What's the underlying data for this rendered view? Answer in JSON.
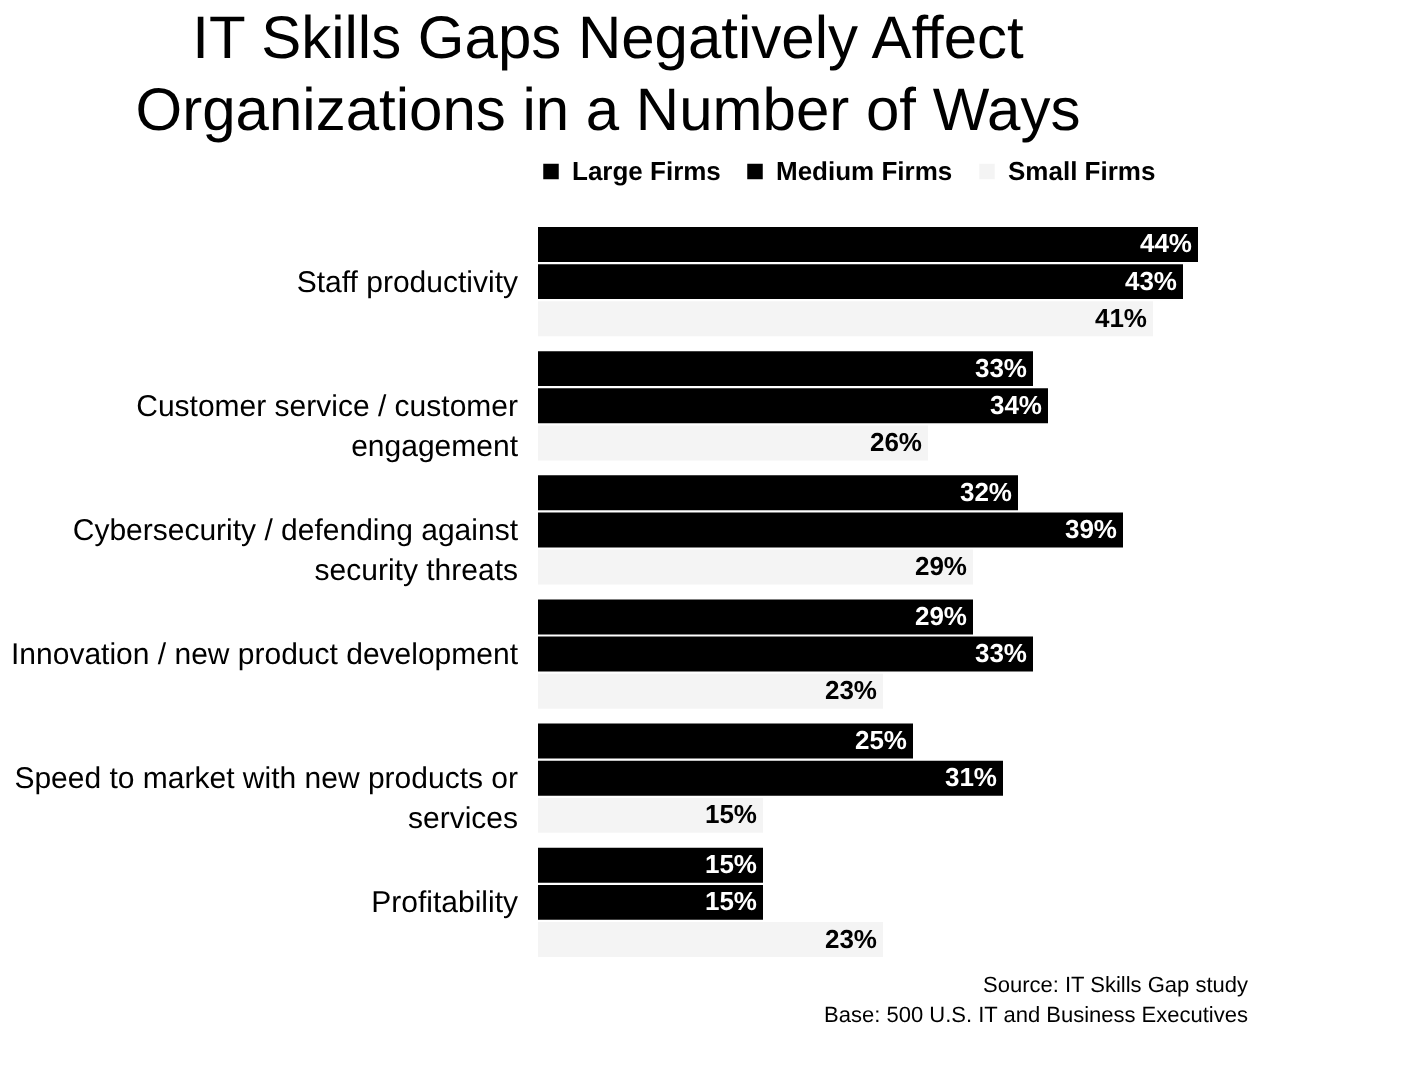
{
  "chart_data": {
    "type": "bar",
    "orientation": "horizontal",
    "title": "IT Skills Gaps Negatively Affect Organizations in a Number of Ways",
    "categories": [
      "Staff productivity",
      "Customer service / customer engagement",
      "Cybersecurity / defending against security threats",
      "Innovation / new product development",
      "Speed to market with new products or services",
      "Profitability"
    ],
    "series": [
      {
        "name": "Large Firms",
        "color": "#000000",
        "values": [
          44,
          33,
          32,
          29,
          25,
          15
        ],
        "value_labels": [
          "44%",
          "33%",
          "32%",
          "29%",
          "25%",
          "15%"
        ]
      },
      {
        "name": "Medium Firms",
        "color": "#000000",
        "values": [
          43,
          34,
          39,
          33,
          31,
          15
        ],
        "value_labels": [
          "43%",
          "34%",
          "39%",
          "33%",
          "31%",
          "15%"
        ]
      },
      {
        "name": "Small Firms",
        "color": "#f4f4f4",
        "values": [
          41,
          26,
          29,
          23,
          15,
          23
        ],
        "value_labels": [
          "41%",
          "26%",
          "29%",
          "23%",
          "15%",
          "23%"
        ]
      }
    ],
    "legend": "top right",
    "annotations": [
      "Source: IT Skills Gap study",
      "Base: 500 U.S. IT and Business Executives"
    ]
  }
}
